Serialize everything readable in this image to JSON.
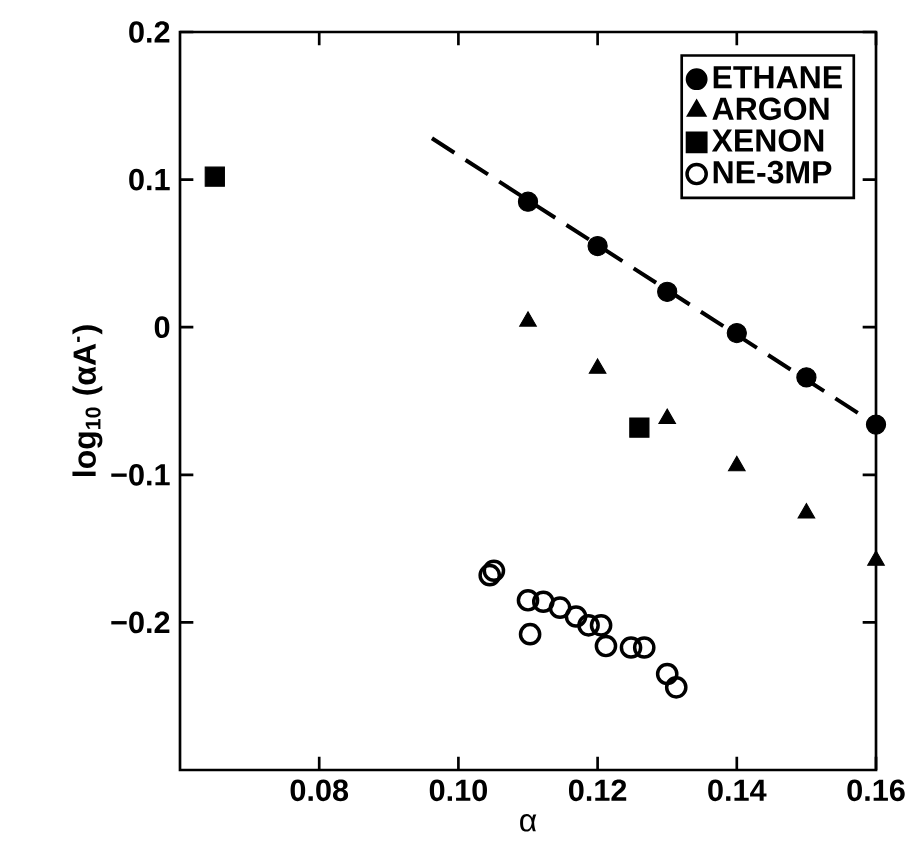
{
  "chart_data": {
    "type": "scatter",
    "xlabel": "α",
    "ylabel": "**log$_{10}$ (αA$^{-}$)**",
    "xlim": [
      0.06,
      0.16
    ],
    "ylim": [
      -0.3,
      0.2
    ],
    "xticks": [
      {
        "value": 0.08,
        "label": "0.08"
      },
      {
        "value": 0.1,
        "label": "0.10"
      },
      {
        "value": 0.12,
        "label": "0.12"
      },
      {
        "value": 0.14,
        "label": "0.14"
      },
      {
        "value": 0.16,
        "label": "0.16"
      }
    ],
    "yticks": [
      {
        "value": -0.2,
        "label": "−0.2"
      },
      {
        "value": -0.1,
        "label": "−0.1"
      },
      0,
      0.1,
      0.2
    ],
    "legend": "top right",
    "grid": false,
    "series": [
      {
        "name": "ETHANE",
        "color": "#000000",
        "marker": "circle",
        "x": [
          0.11,
          0.12,
          0.13,
          0.14,
          0.15,
          0.16
        ],
        "values": [
          0.085,
          0.055,
          0.024,
          -0.004,
          -0.034,
          -0.066
        ]
      },
      {
        "name": "ARGON",
        "color": "#000000",
        "marker": "triangle",
        "x": [
          0.11,
          0.12,
          0.13,
          0.14,
          0.15,
          0.16
        ],
        "values": [
          0.004,
          -0.028,
          -0.062,
          -0.094,
          -0.126,
          -0.158
        ]
      },
      {
        "name": "XENON",
        "color": "#000000",
        "marker": "square",
        "x": [
          0.065,
          0.126
        ],
        "values": [
          0.102,
          -0.068
        ]
      },
      {
        "name": "NE-3MP",
        "color": "#000000",
        "marker": "open circle",
        "x": [
          0.1045,
          0.1051,
          0.11,
          0.1103,
          0.1122,
          0.1146,
          0.1169,
          0.1187,
          0.1205,
          0.1212,
          0.1248,
          0.1267,
          0.13,
          0.1313
        ],
        "values": [
          -0.168,
          -0.165,
          -0.185,
          -0.208,
          -0.186,
          -0.19,
          -0.196,
          -0.202,
          -0.202,
          -0.216,
          -0.217,
          -0.217,
          -0.235,
          -0.244
        ]
      },
      {
        "type": "line",
        "color": "#000000",
        "line_style": "dashed",
        "x": [
          0.0962,
          0.16
        ],
        "values": [
          0.128,
          -0.066
        ]
      }
    ]
  }
}
